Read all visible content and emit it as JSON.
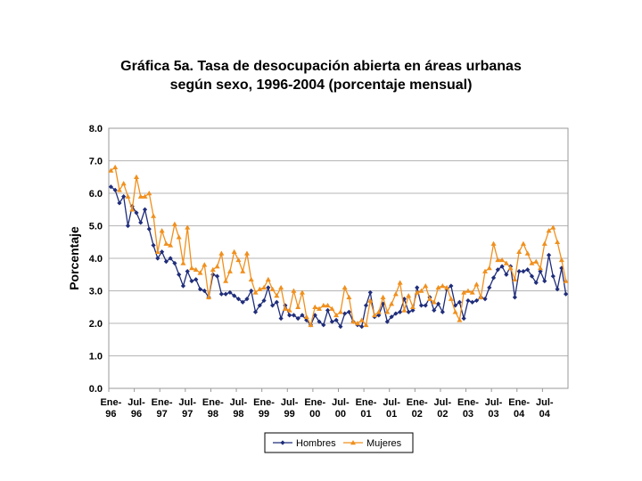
{
  "chart_data": {
    "type": "line",
    "title_line1": "Gráfica 5a. Tasa de desocupación abierta en áreas urbanas",
    "title_line2": "según sexo, 1996-2004 (porcentaje mensual)",
    "ylabel": "Porcentaje",
    "xlabel": "",
    "ylim": [
      0,
      8
    ],
    "yticks": [
      "0.0",
      "1.0",
      "2.0",
      "3.0",
      "4.0",
      "5.0",
      "6.0",
      "7.0",
      "8.0"
    ],
    "xticks": [
      [
        "Ene-",
        "96"
      ],
      [
        "Jul-",
        "96"
      ],
      [
        "Ene-",
        "97"
      ],
      [
        "Jul-",
        "97"
      ],
      [
        "Ene-",
        "98"
      ],
      [
        "Jul-",
        "98"
      ],
      [
        "Ene-",
        "99"
      ],
      [
        "Jul-",
        "99"
      ],
      [
        "Ene-",
        "00"
      ],
      [
        "Jul-",
        "00"
      ],
      [
        "Ene-",
        "01"
      ],
      [
        "Jul-",
        "01"
      ],
      [
        "Ene-",
        "02"
      ],
      [
        "Jul-",
        "02"
      ],
      [
        "Ene-",
        "03"
      ],
      [
        "Jul-",
        "03"
      ],
      [
        "Ene-",
        "04"
      ],
      [
        "Jul-",
        "04"
      ]
    ],
    "x_start": "Ene-96",
    "x_end": "Dic-04",
    "grid": true,
    "legend_position": "bottom-center",
    "series": [
      {
        "name": "Hombres",
        "color": "#1f2d7a",
        "marker": "diamond",
        "values": [
          6.2,
          6.1,
          5.7,
          5.9,
          5.0,
          5.6,
          5.4,
          5.1,
          5.5,
          4.9,
          4.4,
          4.0,
          4.2,
          3.9,
          4.0,
          3.85,
          3.5,
          3.15,
          3.6,
          3.3,
          3.35,
          3.05,
          3.0,
          2.8,
          3.5,
          3.45,
          2.9,
          2.9,
          2.95,
          2.85,
          2.75,
          2.65,
          2.75,
          3.0,
          2.35,
          2.55,
          2.7,
          3.1,
          2.55,
          2.65,
          2.15,
          2.55,
          2.25,
          2.25,
          2.15,
          2.25,
          2.1,
          1.95,
          2.25,
          2.05,
          1.95,
          2.4,
          2.05,
          2.1,
          1.9,
          2.3,
          2.35,
          2.05,
          1.95,
          1.9,
          2.55,
          2.95,
          2.2,
          2.25,
          2.6,
          2.05,
          2.2,
          2.3,
          2.35,
          2.75,
          2.35,
          2.4,
          3.1,
          2.55,
          2.55,
          2.8,
          2.4,
          2.6,
          2.35,
          3.05,
          3.15,
          2.55,
          2.65,
          2.15,
          2.7,
          2.65,
          2.7,
          2.8,
          2.75,
          3.1,
          3.4,
          3.65,
          3.75,
          3.5,
          3.75,
          2.8,
          3.6,
          3.6,
          3.65,
          3.45,
          3.25,
          3.6,
          3.3,
          4.1,
          3.45,
          3.05,
          3.7,
          2.9
        ]
      },
      {
        "name": "Mujeres",
        "color": "#f0901e",
        "marker": "triangle",
        "values": [
          6.7,
          6.8,
          6.1,
          6.3,
          5.9,
          5.5,
          6.5,
          5.9,
          5.9,
          6.0,
          5.3,
          4.2,
          4.85,
          4.45,
          4.4,
          5.05,
          4.65,
          3.85,
          4.95,
          3.7,
          3.65,
          3.55,
          3.8,
          2.8,
          3.65,
          3.75,
          4.15,
          3.3,
          3.6,
          4.2,
          3.95,
          3.6,
          4.15,
          3.35,
          2.95,
          3.05,
          3.1,
          3.35,
          3.05,
          2.85,
          3.1,
          2.45,
          2.4,
          3.0,
          2.5,
          2.95,
          2.2,
          1.95,
          2.5,
          2.45,
          2.55,
          2.55,
          2.45,
          2.25,
          2.35,
          3.1,
          2.8,
          2.05,
          2.0,
          2.1,
          1.95,
          2.7,
          2.25,
          2.35,
          2.8,
          2.35,
          2.6,
          2.9,
          3.25,
          2.4,
          2.85,
          2.5,
          2.95,
          3.0,
          3.15,
          2.75,
          2.65,
          3.1,
          3.15,
          3.1,
          2.75,
          2.35,
          2.1,
          2.95,
          3.0,
          2.95,
          3.2,
          2.8,
          3.6,
          3.7,
          4.45,
          3.95,
          3.95,
          3.85,
          3.7,
          3.35,
          4.2,
          4.45,
          4.15,
          3.85,
          3.9,
          3.7,
          4.45,
          4.85,
          4.95,
          4.5,
          3.95,
          3.3
        ]
      }
    ]
  }
}
